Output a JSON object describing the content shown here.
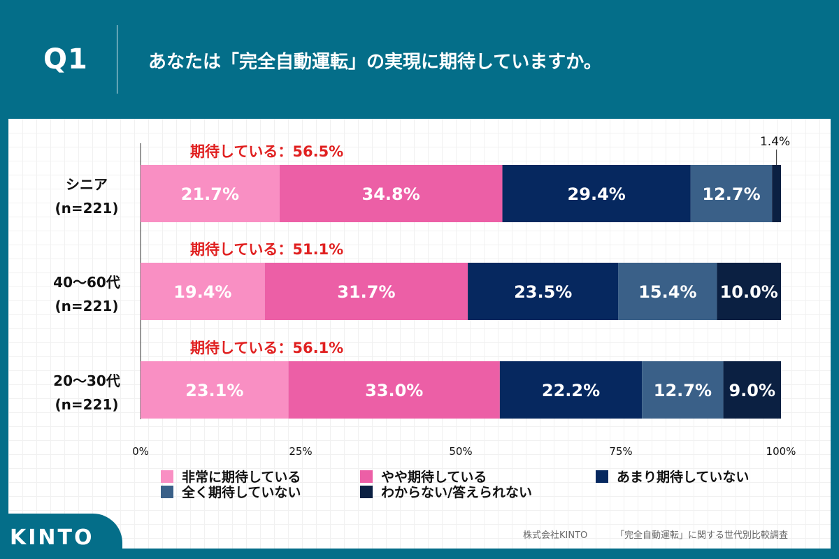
{
  "question": {
    "number": "Q1",
    "text": "あなたは「完全自動運転」の実現に期待していますか。"
  },
  "chart_data": {
    "type": "bar",
    "orientation": "horizontal-stacked-100",
    "categories": [
      {
        "name": "シニア",
        "n": "(n=221)"
      },
      {
        "name": "40〜60代",
        "n": "(n=221)"
      },
      {
        "name": "20〜30代",
        "n": "(n=221)"
      }
    ],
    "series": [
      {
        "name": "非常に期待している",
        "color": "#f98fc3",
        "label_color": "#ffffff",
        "values": [
          21.7,
          19.4,
          23.1
        ]
      },
      {
        "name": "やや期待している",
        "color": "#ec5fa6",
        "label_color": "#ffffff",
        "values": [
          34.8,
          31.7,
          33.0
        ]
      },
      {
        "name": "あまり期待していない",
        "color": "#06285f",
        "label_color": "#ffffff",
        "values": [
          29.4,
          23.5,
          22.2
        ]
      },
      {
        "name": "全く期待していない",
        "color": "#3a6088",
        "label_color": "#ffffff",
        "values": [
          12.7,
          15.4,
          12.7
        ]
      },
      {
        "name": "わからない/答えられない",
        "color": "#0b2042",
        "label_color": "#ffffff",
        "values": [
          1.4,
          10.0,
          9.0
        ]
      }
    ],
    "summary_labels": [
      "期待している：56.5%",
      "期待している：51.1%",
      "期待している：56.1%"
    ],
    "summary_color": "#e02020",
    "xlim": [
      0,
      100
    ],
    "xticks": [
      "0%",
      "25%",
      "50%",
      "75%",
      "100%"
    ],
    "legend_position": "bottom"
  },
  "footer": {
    "logo": "KINTO",
    "company": "株式会社KINTO",
    "survey": "「完全自動運転」に関する世代別比較調査"
  }
}
